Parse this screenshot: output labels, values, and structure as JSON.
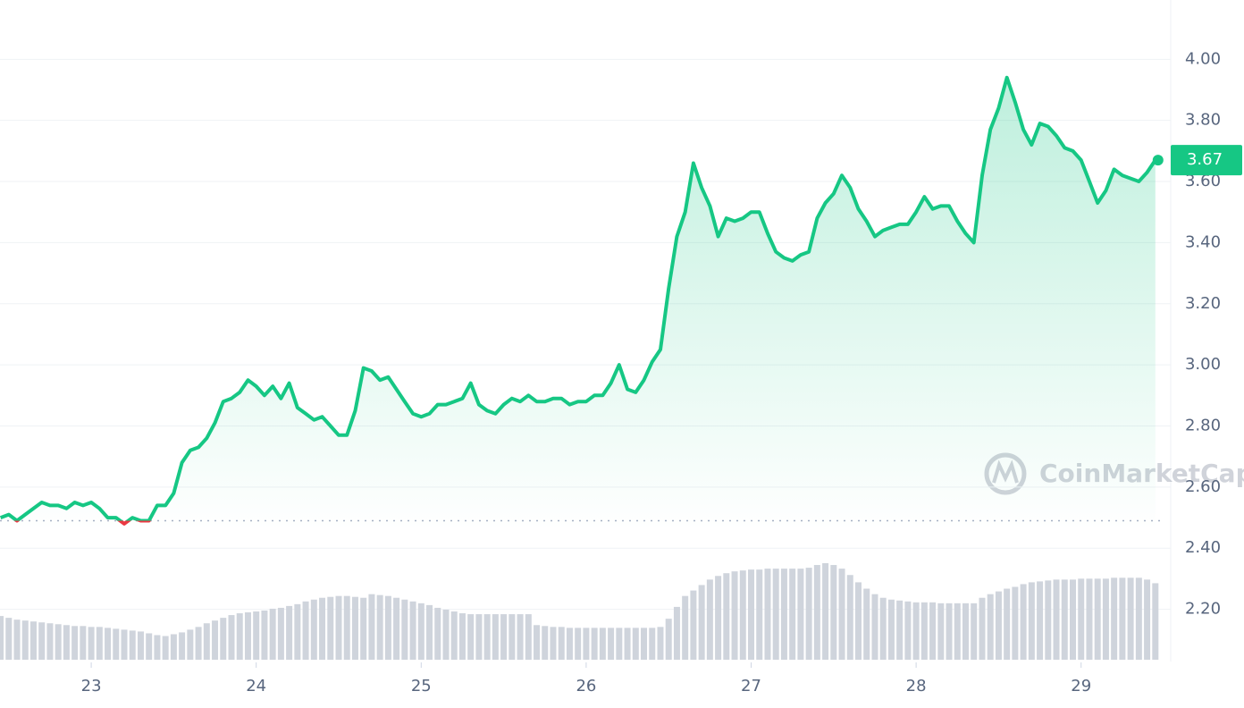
{
  "chart_data": {
    "type": "line",
    "x": [
      22.45,
      22.5,
      22.55,
      22.6,
      22.65,
      22.7,
      22.75,
      22.8,
      22.85,
      22.9,
      22.95,
      23,
      23.05,
      23.1,
      23.15,
      23.2,
      23.25,
      23.3,
      23.35,
      23.4,
      23.45,
      23.5,
      23.55,
      23.6,
      23.65,
      23.7,
      23.75,
      23.8,
      23.85,
      23.9,
      23.95,
      24,
      24.05,
      24.1,
      24.15,
      24.2,
      24.25,
      24.3,
      24.35,
      24.4,
      24.45,
      24.5,
      24.55,
      24.6,
      24.65,
      24.7,
      24.75,
      24.8,
      24.85,
      24.9,
      24.95,
      25,
      25.05,
      25.1,
      25.15,
      25.2,
      25.25,
      25.3,
      25.35,
      25.4,
      25.45,
      25.5,
      25.55,
      25.6,
      25.65,
      25.7,
      25.75,
      25.8,
      25.85,
      25.9,
      25.95,
      26,
      26.05,
      26.1,
      26.15,
      26.2,
      26.25,
      26.3,
      26.35,
      26.4,
      26.45,
      26.5,
      26.55,
      26.6,
      26.65,
      26.7,
      26.75,
      26.8,
      26.85,
      26.9,
      26.95,
      27,
      27.05,
      27.1,
      27.15,
      27.2,
      27.25,
      27.3,
      27.35,
      27.4,
      27.45,
      27.5,
      27.55,
      27.6,
      27.65,
      27.7,
      27.75,
      27.8,
      27.85,
      27.9,
      27.95,
      28,
      28.05,
      28.1,
      28.15,
      28.2,
      28.25,
      28.3,
      28.35,
      28.4,
      28.45,
      28.5,
      28.55,
      28.6,
      28.65,
      28.7,
      28.75,
      28.8,
      28.85,
      28.9,
      28.95,
      29,
      29.05,
      29.1,
      29.15,
      29.2,
      29.25,
      29.3,
      29.35,
      29.4,
      29.45
    ],
    "values": [
      2.5,
      2.51,
      2.49,
      2.51,
      2.53,
      2.55,
      2.54,
      2.54,
      2.53,
      2.55,
      2.54,
      2.55,
      2.53,
      2.5,
      2.5,
      2.48,
      2.5,
      2.49,
      2.49,
      2.54,
      2.54,
      2.58,
      2.68,
      2.72,
      2.73,
      2.76,
      2.81,
      2.88,
      2.89,
      2.91,
      2.95,
      2.93,
      2.9,
      2.93,
      2.89,
      2.94,
      2.86,
      2.84,
      2.82,
      2.83,
      2.8,
      2.77,
      2.77,
      2.85,
      2.99,
      2.98,
      2.95,
      2.96,
      2.92,
      2.88,
      2.84,
      2.83,
      2.84,
      2.87,
      2.87,
      2.88,
      2.89,
      2.94,
      2.87,
      2.85,
      2.84,
      2.87,
      2.89,
      2.88,
      2.9,
      2.88,
      2.88,
      2.89,
      2.89,
      2.87,
      2.88,
      2.88,
      2.9,
      2.9,
      2.94,
      3.0,
      2.92,
      2.91,
      2.95,
      3.01,
      3.05,
      3.25,
      3.42,
      3.5,
      3.66,
      3.58,
      3.52,
      3.42,
      3.48,
      3.47,
      3.48,
      3.5,
      3.5,
      3.43,
      3.37,
      3.35,
      3.34,
      3.36,
      3.37,
      3.48,
      3.53,
      3.56,
      3.62,
      3.58,
      3.51,
      3.47,
      3.42,
      3.44,
      3.45,
      3.46,
      3.46,
      3.5,
      3.55,
      3.51,
      3.52,
      3.52,
      3.47,
      3.43,
      3.4,
      3.62,
      3.77,
      3.84,
      3.94,
      3.86,
      3.77,
      3.72,
      3.79,
      3.78,
      3.75,
      3.71,
      3.7,
      3.67,
      3.6,
      3.53,
      3.57,
      3.64,
      3.62,
      3.61,
      3.6,
      3.63,
      3.67
    ],
    "volume": [
      48,
      46,
      44,
      43,
      42,
      41,
      40,
      39,
      38,
      37,
      37,
      36,
      36,
      35,
      34,
      33,
      32,
      31,
      29,
      27,
      26,
      28,
      30,
      33,
      36,
      40,
      43,
      46,
      49,
      51,
      52,
      53,
      54,
      56,
      57,
      59,
      61,
      64,
      66,
      68,
      69,
      70,
      70,
      69,
      68,
      72,
      71,
      70,
      68,
      66,
      64,
      62,
      60,
      57,
      55,
      53,
      51,
      50,
      50,
      50,
      50,
      50,
      50,
      50,
      50,
      38,
      37,
      36,
      36,
      35,
      35,
      35,
      35,
      35,
      35,
      35,
      35,
      35,
      35,
      35,
      36,
      45,
      58,
      70,
      76,
      82,
      88,
      92,
      95,
      97,
      98,
      99,
      99,
      100,
      100,
      100,
      100,
      100,
      101,
      104,
      106,
      104,
      100,
      93,
      85,
      78,
      72,
      68,
      66,
      65,
      64,
      63,
      63,
      63,
      62,
      62,
      62,
      62,
      62,
      68,
      72,
      75,
      78,
      80,
      83,
      85,
      86,
      87,
      88,
      88,
      88,
      89,
      89,
      89,
      89,
      90,
      90,
      90,
      90,
      88,
      84
    ],
    "color": "#16c784",
    "down_color": "#ea3943",
    "volume_color": "#cfd4dc",
    "baseline": 2.49,
    "current_value": 3.67,
    "watermark": "CoinMarketCap",
    "xlim": [
      22.447,
      29.489
    ],
    "xticks": [
      23,
      24,
      25,
      26,
      27,
      28,
      29
    ],
    "ylim": [
      2.035,
      4.194
    ],
    "yticks": [
      {
        "value": 2.2,
        "label": "2.20"
      },
      {
        "value": 2.4,
        "label": "2.40"
      },
      {
        "value": 2.6,
        "label": "2.60"
      },
      {
        "value": 2.8,
        "label": "2.80"
      },
      {
        "value": 3.0,
        "label": "3.00"
      },
      {
        "value": 3.2,
        "label": "3.20"
      },
      {
        "value": 3.4,
        "label": "3.40"
      },
      {
        "value": 3.6,
        "label": "3.60"
      },
      {
        "value": 3.8,
        "label": "3.80"
      },
      {
        "value": 4.0,
        "label": "4.00"
      }
    ],
    "grid": true
  }
}
